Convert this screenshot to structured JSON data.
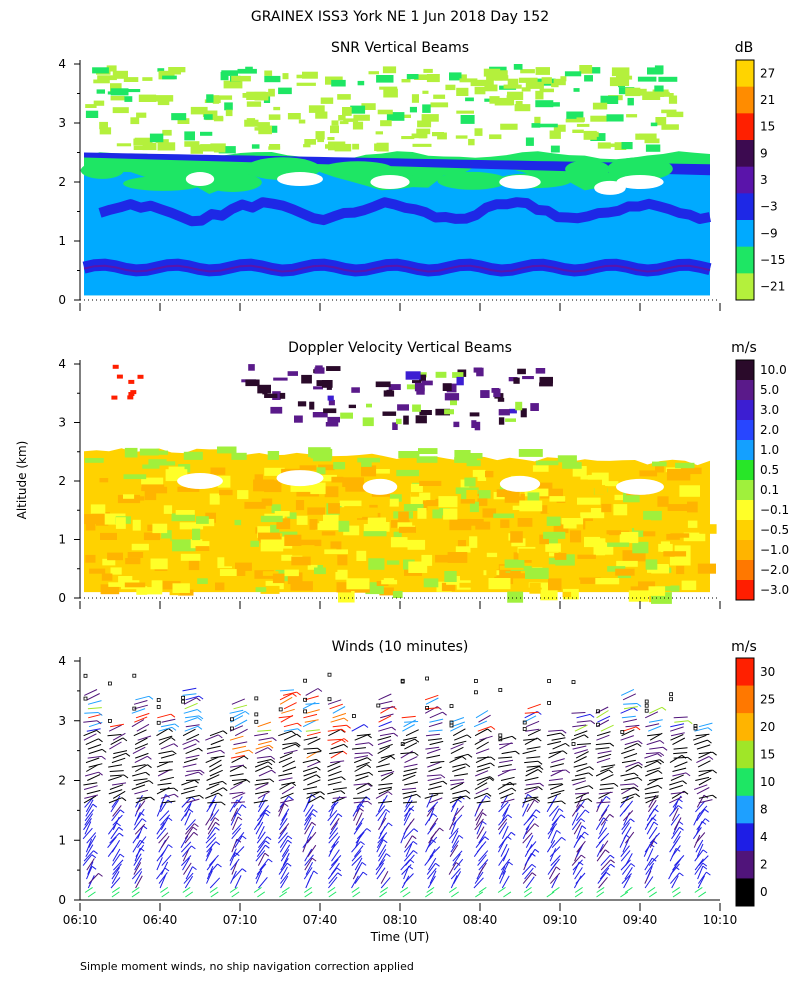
{
  "page": {
    "title": "GRAINEX ISS3 York NE   1 Jun 2018 Day 152",
    "shared_ylabel": "Altitude (km)",
    "xlabel": "Time (UT)",
    "footnote": "Simple moment winds, no ship navigation correction applied"
  },
  "x_ticks": [
    "06:10",
    "06:40",
    "07:10",
    "07:40",
    "08:10",
    "08:40",
    "09:10",
    "09:40",
    "10:10"
  ],
  "chart_data": [
    {
      "type": "heatmap",
      "title": "SNR Vertical Beams",
      "unit": "dB",
      "xlim": [
        "06:10",
        "10:10"
      ],
      "ylim": [
        0,
        4
      ],
      "y_ticks": [
        "0",
        "1",
        "2",
        "3",
        "4"
      ],
      "colorbar": {
        "labels": [
          "27",
          "21",
          "15",
          "9",
          "3",
          "−3",
          "−9",
          "−15",
          "−21"
        ],
        "colors": [
          "#ffd400",
          "#ff8c00",
          "#ff2000",
          "#3c0a50",
          "#5a14aa",
          "#1e28e6",
          "#00aaff",
          "#1ee664",
          "#b4f03c"
        ]
      }
    },
    {
      "type": "heatmap",
      "title": "Doppler Velocity Vertical Beams",
      "unit": "m/s",
      "xlim": [
        "06:10",
        "10:10"
      ],
      "ylim": [
        0,
        4
      ],
      "y_ticks": [
        "0",
        "1",
        "2",
        "3",
        "4"
      ],
      "colorbar": {
        "labels": [
          "10.0",
          "5.0",
          "3.0",
          "2.0",
          "1.0",
          "0.5",
          "0.1",
          "−0.1",
          "−0.5",
          "−1.0",
          "−2.0",
          "−3.0"
        ],
        "colors": [
          "#2a0a2a",
          "#5a1a8a",
          "#3c1ed2",
          "#2846ff",
          "#14a0ff",
          "#28e628",
          "#a0f03c",
          "#ffff28",
          "#ffd200",
          "#ffb400",
          "#ff7800",
          "#ff1e00"
        ]
      }
    },
    {
      "type": "scatter",
      "title": "Winds (10 minutes)",
      "unit": "m/s",
      "xlim": [
        "06:10",
        "10:10"
      ],
      "ylim": [
        0,
        4
      ],
      "y_ticks": [
        "0",
        "1",
        "2",
        "3",
        "4"
      ],
      "colorbar": {
        "labels": [
          "30",
          "25",
          "20",
          "15",
          "10",
          "8",
          "4",
          "2",
          "0"
        ],
        "colors": [
          "#ff2000",
          "#ff7800",
          "#ffb400",
          "#a0e628",
          "#1ee664",
          "#1ea0ff",
          "#1e1ee6",
          "#50147a",
          "#000000"
        ]
      }
    }
  ]
}
